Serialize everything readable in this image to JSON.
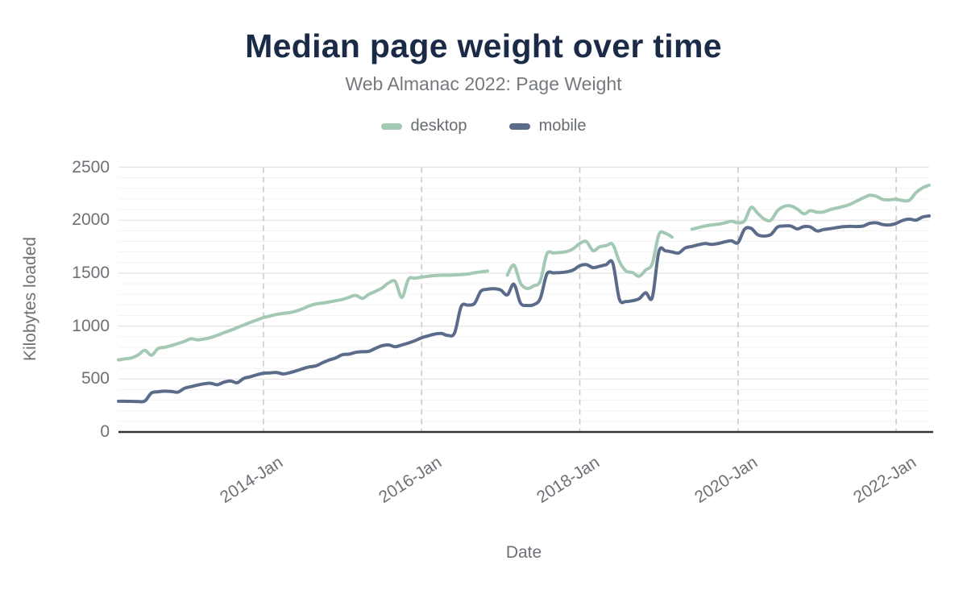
{
  "header": {
    "title": "Median page weight over time",
    "subtitle": "Web Almanac 2022: Page Weight"
  },
  "legend": {
    "items": [
      {
        "label": "desktop",
        "color": "#a3c9b4"
      },
      {
        "label": "mobile",
        "color": "#5b6c8b"
      }
    ]
  },
  "axes": {
    "y_title": "Kilobytes loaded",
    "x_title": "Date",
    "y_ticks": [
      "0",
      "500",
      "1000",
      "1500",
      "2000",
      "2500"
    ],
    "x_ticks": [
      "2014-Jan",
      "2016-Jan",
      "2018-Jan",
      "2020-Jan",
      "2022-Jan"
    ]
  },
  "colors": {
    "title": "#1b2a47",
    "subtitle": "#75797e",
    "tick_label": "#6d7176",
    "axis_line": "#343434",
    "grid_minor": "#f3f3f3",
    "grid_major": "#e2e2e2",
    "grid_vertical_dashed": "#cccccc"
  },
  "chart_data": {
    "type": "line",
    "title": "Median page weight over time",
    "subtitle": "Web Almanac 2022: Page Weight",
    "xlabel": "Date",
    "ylabel": "Kilobytes loaded",
    "ylim": [
      0,
      2500
    ],
    "y_tick_interval_major": 500,
    "y_tick_interval_minor": 100,
    "grid": {
      "horizontal": true,
      "vertical": "dashed-at-year-ticks"
    },
    "legend_position": "top-center",
    "x_monthly": {
      "start": "2012-03",
      "end": "2022-06",
      "count": 124
    },
    "x_tick_labels": [
      "2014-Jan",
      "2016-Jan",
      "2018-Jan",
      "2020-Jan",
      "2022-Jan"
    ],
    "x_tick_month_indices": [
      22,
      46,
      70,
      94,
      118
    ],
    "series": [
      {
        "name": "desktop",
        "color": "#a3c9b4",
        "values": [
          680,
          690,
          700,
          728,
          772,
          725,
          788,
          800,
          815,
          835,
          855,
          880,
          870,
          878,
          892,
          913,
          938,
          960,
          985,
          1010,
          1035,
          1058,
          1080,
          1095,
          1110,
          1120,
          1127,
          1142,
          1165,
          1192,
          1210,
          1218,
          1228,
          1240,
          1252,
          1272,
          1290,
          1262,
          1300,
          1328,
          1360,
          1408,
          1420,
          1270,
          1442,
          1452,
          1462,
          1470,
          1477,
          1480,
          1480,
          1483,
          1486,
          1492,
          1503,
          1512,
          1520,
          null,
          null,
          1482,
          1575,
          1405,
          1355,
          1380,
          1425,
          1680,
          1690,
          1695,
          1703,
          1730,
          1780,
          1798,
          1712,
          1748,
          1760,
          1770,
          1610,
          1520,
          1505,
          1470,
          1530,
          1590,
          1865,
          1875,
          1840,
          null,
          null,
          1915,
          1930,
          1945,
          1955,
          1962,
          1975,
          1990,
          1975,
          1995,
          2120,
          2065,
          2010,
          2000,
          2090,
          2130,
          2135,
          2105,
          2060,
          2090,
          2075,
          2078,
          2100,
          2115,
          2130,
          2150,
          2180,
          2210,
          2235,
          2225,
          2195,
          2192,
          2198,
          2185,
          2188,
          2260,
          2305,
          2330
        ]
      },
      {
        "name": "mobile",
        "color": "#5b6c8b",
        "values": [
          290,
          290,
          289,
          288,
          292,
          368,
          380,
          385,
          383,
          376,
          412,
          428,
          443,
          455,
          460,
          446,
          470,
          482,
          465,
          505,
          522,
          540,
          555,
          558,
          562,
          548,
          560,
          578,
          598,
          615,
          625,
          655,
          680,
          700,
          730,
          735,
          752,
          758,
          762,
          790,
          815,
          822,
          805,
          822,
          840,
          862,
          890,
          908,
          925,
          930,
          912,
          935,
          1185,
          1198,
          1212,
          1330,
          1348,
          1352,
          1340,
          1295,
          1395,
          1218,
          1195,
          1202,
          1260,
          1490,
          1502,
          1505,
          1512,
          1530,
          1570,
          1580,
          1552,
          1565,
          1580,
          1595,
          1255,
          1232,
          1240,
          1258,
          1315,
          1272,
          1705,
          1710,
          1700,
          1690,
          1738,
          1752,
          1768,
          1780,
          1772,
          1780,
          1795,
          1805,
          1788,
          1915,
          1922,
          1862,
          1850,
          1865,
          1935,
          1945,
          1945,
          1918,
          1940,
          1935,
          1898,
          1912,
          1920,
          1930,
          1938,
          1942,
          1940,
          1945,
          1970,
          1975,
          1958,
          1955,
          1970,
          1998,
          2010,
          2000,
          2030,
          2040
        ]
      }
    ]
  }
}
